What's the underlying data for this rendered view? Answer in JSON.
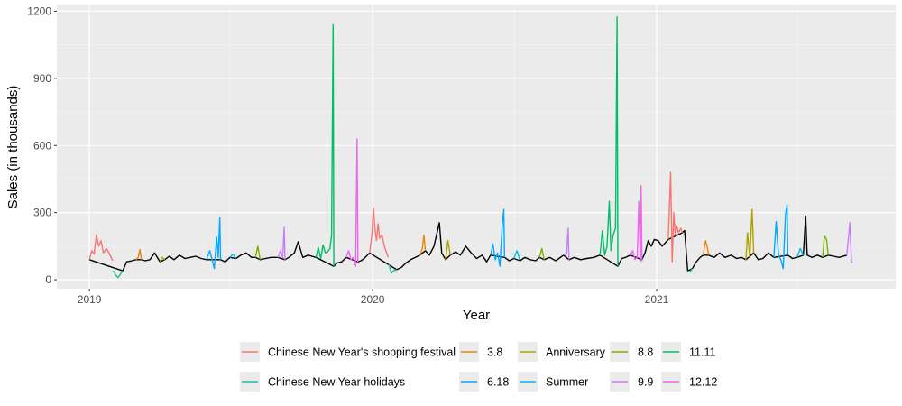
{
  "chart_data": {
    "type": "line",
    "title": "",
    "xlabel": "Year",
    "ylabel": "Sales (in thousands)",
    "xlim": [
      "2018-11-20",
      "2021-11-05"
    ],
    "ylim": [
      -40,
      1230
    ],
    "y_ticks": [
      0,
      300,
      600,
      900,
      1200
    ],
    "y_tick_labels": [
      "0",
      "300",
      "600",
      "900",
      "1200"
    ],
    "x_ticks": [
      "2019-01-01",
      "2020-01-01",
      "2021-01-01"
    ],
    "x_tick_labels": [
      "2019",
      "2020",
      "2021"
    ],
    "grid": true,
    "legend_position": "bottom",
    "base_color": "#000000",
    "series": [
      {
        "name": "Chinese New Year's shopping festival",
        "color": "#F8766D",
        "points": [
          [
            "2019-01-01",
            90
          ],
          [
            "2019-01-04",
            130
          ],
          [
            "2019-01-07",
            115
          ],
          [
            "2019-01-10",
            200
          ],
          [
            "2019-01-13",
            150
          ],
          [
            "2019-01-16",
            175
          ],
          [
            "2019-01-19",
            120
          ],
          [
            "2019-01-23",
            140
          ],
          [
            "2019-01-27",
            115
          ],
          [
            "2019-01-31",
            85
          ],
          [
            "2019-12-28",
            120
          ],
          [
            "2019-12-31",
            200
          ],
          [
            "2020-01-02",
            320
          ],
          [
            "2020-01-04",
            230
          ],
          [
            "2020-01-06",
            175
          ],
          [
            "2020-01-08",
            250
          ],
          [
            "2020-01-10",
            185
          ],
          [
            "2020-01-13",
            200
          ],
          [
            "2020-01-16",
            150
          ],
          [
            "2020-01-19",
            120
          ],
          [
            "2020-01-21",
            100
          ],
          [
            "2021-01-16",
            180
          ],
          [
            "2021-01-19",
            480
          ],
          [
            "2021-01-21",
            80
          ],
          [
            "2021-01-23",
            300
          ],
          [
            "2021-01-25",
            200
          ],
          [
            "2021-01-27",
            240
          ],
          [
            "2021-01-29",
            210
          ],
          [
            "2021-02-01",
            230
          ],
          [
            "2021-02-03",
            210
          ]
        ]
      },
      {
        "name": "Chinese New Year holidays",
        "color": "#1ABC9C",
        "points": [
          [
            "2019-02-01",
            40
          ],
          [
            "2019-02-04",
            20
          ],
          [
            "2019-02-07",
            10
          ],
          [
            "2019-02-10",
            25
          ],
          [
            "2019-02-13",
            40
          ],
          [
            "2020-01-22",
            70
          ],
          [
            "2020-01-25",
            30
          ],
          [
            "2020-01-28",
            40
          ],
          [
            "2020-02-01",
            45
          ],
          [
            "2021-02-10",
            40
          ],
          [
            "2021-02-13",
            35
          ],
          [
            "2021-02-16",
            50
          ]
        ]
      },
      {
        "name": "3.8",
        "color": "#E68613",
        "points": [
          [
            "2019-03-02",
            90
          ],
          [
            "2019-03-05",
            100
          ],
          [
            "2019-03-07",
            135
          ],
          [
            "2019-03-09",
            90
          ],
          [
            "2020-03-02",
            110
          ],
          [
            "2020-03-05",
            140
          ],
          [
            "2020-03-07",
            200
          ],
          [
            "2020-03-09",
            130
          ],
          [
            "2021-03-02",
            110
          ],
          [
            "2021-03-05",
            175
          ],
          [
            "2021-03-07",
            150
          ],
          [
            "2021-03-09",
            110
          ]
        ]
      },
      {
        "name": "Anniversary",
        "color": "#ABA300",
        "points": [
          [
            "2019-04-02",
            80
          ],
          [
            "2019-04-05",
            100
          ],
          [
            "2019-04-08",
            90
          ],
          [
            "2020-04-04",
            90
          ],
          [
            "2020-04-07",
            175
          ],
          [
            "2020-04-10",
            110
          ],
          [
            "2021-04-26",
            90
          ],
          [
            "2021-04-28",
            210
          ],
          [
            "2021-05-01",
            100
          ],
          [
            "2021-05-04",
            315
          ],
          [
            "2021-05-06",
            120
          ]
        ]
      },
      {
        "name": "8.8",
        "color": "#7CAE00",
        "points": [
          [
            "2019-08-03",
            100
          ],
          [
            "2019-08-06",
            150
          ],
          [
            "2019-08-09",
            90
          ],
          [
            "2020-08-03",
            100
          ],
          [
            "2020-08-06",
            140
          ],
          [
            "2020-08-09",
            90
          ],
          [
            "2021-08-03",
            100
          ],
          [
            "2021-08-05",
            195
          ],
          [
            "2021-08-08",
            180
          ],
          [
            "2021-08-10",
            110
          ]
        ]
      },
      {
        "name": "11.11",
        "color": "#00BE67",
        "points": [
          [
            "2019-10-20",
            100
          ],
          [
            "2019-10-23",
            145
          ],
          [
            "2019-10-26",
            95
          ],
          [
            "2019-10-29",
            155
          ],
          [
            "2019-11-01",
            120
          ],
          [
            "2019-11-04",
            125
          ],
          [
            "2019-11-07",
            140
          ],
          [
            "2019-11-09",
            200
          ],
          [
            "2019-11-11",
            1140
          ],
          [
            "2019-11-12",
            60
          ],
          [
            "2020-10-20",
            110
          ],
          [
            "2020-10-23",
            220
          ],
          [
            "2020-10-26",
            110
          ],
          [
            "2020-10-29",
            150
          ],
          [
            "2020-11-01",
            350
          ],
          [
            "2020-11-03",
            130
          ],
          [
            "2020-11-06",
            200
          ],
          [
            "2020-11-09",
            230
          ],
          [
            "2020-11-11",
            1175
          ],
          [
            "2020-11-12",
            60
          ]
        ]
      },
      {
        "name": "6.18",
        "color": "#00A9FF",
        "points": [
          [
            "2019-06-01",
            90
          ],
          [
            "2019-06-05",
            130
          ],
          [
            "2019-06-08",
            90
          ],
          [
            "2019-06-11",
            50
          ],
          [
            "2019-06-14",
            190
          ],
          [
            "2019-06-16",
            100
          ],
          [
            "2019-06-18",
            280
          ],
          [
            "2019-06-19",
            90
          ],
          [
            "2020-06-01",
            110
          ],
          [
            "2020-06-04",
            160
          ],
          [
            "2020-06-07",
            90
          ],
          [
            "2020-06-10",
            120
          ],
          [
            "2020-06-13",
            60
          ],
          [
            "2020-06-16",
            240
          ],
          [
            "2020-06-18",
            315
          ],
          [
            "2020-06-19",
            100
          ],
          [
            "2021-06-01",
            100
          ],
          [
            "2021-06-04",
            260
          ],
          [
            "2021-06-07",
            110
          ],
          [
            "2021-06-10",
            90
          ],
          [
            "2021-06-13",
            50
          ],
          [
            "2021-06-16",
            290
          ],
          [
            "2021-06-18",
            335
          ],
          [
            "2021-06-19",
            110
          ]
        ]
      },
      {
        "name": "Summer",
        "color": "#00B8E7",
        "points": [
          [
            "2019-07-01",
            100
          ],
          [
            "2019-07-05",
            115
          ],
          [
            "2019-07-09",
            95
          ],
          [
            "2020-07-01",
            95
          ],
          [
            "2020-07-05",
            130
          ],
          [
            "2020-07-09",
            85
          ],
          [
            "2021-07-01",
            100
          ],
          [
            "2021-07-05",
            140
          ],
          [
            "2021-07-09",
            110
          ]
        ]
      },
      {
        "name": "9.9",
        "color": "#C77CFF",
        "points": [
          [
            "2019-09-01",
            100
          ],
          [
            "2019-09-04",
            130
          ],
          [
            "2019-09-07",
            100
          ],
          [
            "2019-09-09",
            235
          ],
          [
            "2019-09-10",
            90
          ],
          [
            "2020-09-03",
            110
          ],
          [
            "2020-09-07",
            120
          ],
          [
            "2020-09-09",
            230
          ],
          [
            "2020-09-10",
            90
          ],
          [
            "2021-09-03",
            110
          ],
          [
            "2021-09-07",
            255
          ],
          [
            "2021-09-09",
            80
          ],
          [
            "2021-09-11",
            75
          ]
        ]
      },
      {
        "name": "12.12",
        "color": "#ED68ED",
        "points": [
          [
            "2019-11-28",
            100
          ],
          [
            "2019-12-01",
            130
          ],
          [
            "2019-12-04",
            90
          ],
          [
            "2019-12-07",
            100
          ],
          [
            "2019-12-10",
            60
          ],
          [
            "2019-12-12",
            630
          ],
          [
            "2019-12-13",
            80
          ],
          [
            "2020-11-28",
            110
          ],
          [
            "2020-12-01",
            130
          ],
          [
            "2020-12-04",
            90
          ],
          [
            "2020-12-07",
            100
          ],
          [
            "2020-12-09",
            350
          ],
          [
            "2020-12-11",
            80
          ],
          [
            "2020-12-12",
            420
          ],
          [
            "2020-12-13",
            90
          ]
        ]
      }
    ],
    "baseline": [
      [
        "2019-01-01",
        90
      ],
      [
        "2019-02-13",
        40
      ],
      [
        "2019-02-18",
        80
      ],
      [
        "2019-02-25",
        85
      ],
      [
        "2019-03-02",
        90
      ],
      [
        "2019-03-09",
        90
      ],
      [
        "2019-03-14",
        85
      ],
      [
        "2019-03-20",
        90
      ],
      [
        "2019-03-26",
        120
      ],
      [
        "2019-04-02",
        80
      ],
      [
        "2019-04-08",
        90
      ],
      [
        "2019-04-14",
        105
      ],
      [
        "2019-04-20",
        90
      ],
      [
        "2019-04-27",
        110
      ],
      [
        "2019-05-04",
        95
      ],
      [
        "2019-05-11",
        100
      ],
      [
        "2019-05-18",
        105
      ],
      [
        "2019-05-25",
        95
      ],
      [
        "2019-06-01",
        90
      ],
      [
        "2019-06-19",
        90
      ],
      [
        "2019-06-25",
        80
      ],
      [
        "2019-07-01",
        100
      ],
      [
        "2019-07-09",
        95
      ],
      [
        "2019-07-15",
        110
      ],
      [
        "2019-07-22",
        120
      ],
      [
        "2019-07-29",
        100
      ],
      [
        "2019-08-03",
        100
      ],
      [
        "2019-08-09",
        90
      ],
      [
        "2019-08-16",
        95
      ],
      [
        "2019-08-23",
        100
      ],
      [
        "2019-09-01",
        100
      ],
      [
        "2019-09-10",
        90
      ],
      [
        "2019-09-15",
        100
      ],
      [
        "2019-09-22",
        120
      ],
      [
        "2019-09-27",
        170
      ],
      [
        "2019-10-03",
        100
      ],
      [
        "2019-10-10",
        110
      ],
      [
        "2019-10-20",
        100
      ],
      [
        "2019-11-12",
        60
      ],
      [
        "2019-11-16",
        75
      ],
      [
        "2019-11-22",
        80
      ],
      [
        "2019-11-28",
        100
      ],
      [
        "2019-12-13",
        80
      ],
      [
        "2019-12-17",
        85
      ],
      [
        "2019-12-21",
        95
      ],
      [
        "2019-12-28",
        120
      ],
      [
        "2020-02-01",
        45
      ],
      [
        "2020-02-07",
        55
      ],
      [
        "2020-02-13",
        75
      ],
      [
        "2020-02-19",
        90
      ],
      [
        "2020-02-25",
        100
      ],
      [
        "2020-03-02",
        110
      ],
      [
        "2020-03-09",
        130
      ],
      [
        "2020-03-14",
        110
      ],
      [
        "2020-03-20",
        150
      ],
      [
        "2020-03-27",
        255
      ],
      [
        "2020-03-30",
        120
      ],
      [
        "2020-04-04",
        90
      ],
      [
        "2020-04-10",
        110
      ],
      [
        "2020-04-17",
        125
      ],
      [
        "2020-04-23",
        110
      ],
      [
        "2020-04-30",
        150
      ],
      [
        "2020-05-07",
        120
      ],
      [
        "2020-05-14",
        95
      ],
      [
        "2020-05-21",
        110
      ],
      [
        "2020-05-27",
        80
      ],
      [
        "2020-06-01",
        110
      ],
      [
        "2020-06-19",
        100
      ],
      [
        "2020-06-25",
        85
      ],
      [
        "2020-07-01",
        95
      ],
      [
        "2020-07-09",
        85
      ],
      [
        "2020-07-15",
        100
      ],
      [
        "2020-07-22",
        90
      ],
      [
        "2020-07-29",
        85
      ],
      [
        "2020-08-03",
        100
      ],
      [
        "2020-08-09",
        90
      ],
      [
        "2020-08-16",
        100
      ],
      [
        "2020-08-24",
        85
      ],
      [
        "2020-09-03",
        110
      ],
      [
        "2020-09-10",
        90
      ],
      [
        "2020-09-17",
        100
      ],
      [
        "2020-09-25",
        90
      ],
      [
        "2020-10-03",
        95
      ],
      [
        "2020-10-12",
        100
      ],
      [
        "2020-10-20",
        110
      ],
      [
        "2020-11-12",
        60
      ],
      [
        "2020-11-17",
        95
      ],
      [
        "2020-11-22",
        100
      ],
      [
        "2020-11-28",
        110
      ],
      [
        "2020-12-13",
        90
      ],
      [
        "2020-12-17",
        120
      ],
      [
        "2020-12-21",
        175
      ],
      [
        "2020-12-25",
        150
      ],
      [
        "2020-12-29",
        180
      ],
      [
        "2021-01-03",
        175
      ],
      [
        "2021-01-08",
        150
      ],
      [
        "2021-01-12",
        165
      ],
      [
        "2021-01-16",
        180
      ],
      [
        "2021-02-03",
        210
      ],
      [
        "2021-02-06",
        220
      ],
      [
        "2021-02-10",
        40
      ],
      [
        "2021-02-16",
        50
      ],
      [
        "2021-02-21",
        80
      ],
      [
        "2021-02-26",
        100
      ],
      [
        "2021-03-02",
        110
      ],
      [
        "2021-03-09",
        110
      ],
      [
        "2021-03-16",
        100
      ],
      [
        "2021-03-23",
        120
      ],
      [
        "2021-03-30",
        100
      ],
      [
        "2021-04-07",
        110
      ],
      [
        "2021-04-14",
        95
      ],
      [
        "2021-04-20",
        100
      ],
      [
        "2021-04-26",
        90
      ],
      [
        "2021-05-06",
        120
      ],
      [
        "2021-05-12",
        90
      ],
      [
        "2021-05-18",
        95
      ],
      [
        "2021-05-25",
        120
      ],
      [
        "2021-06-01",
        100
      ],
      [
        "2021-06-19",
        110
      ],
      [
        "2021-06-25",
        95
      ],
      [
        "2021-07-01",
        100
      ],
      [
        "2021-07-09",
        110
      ],
      [
        "2021-07-12",
        285
      ],
      [
        "2021-07-14",
        110
      ],
      [
        "2021-07-20",
        100
      ],
      [
        "2021-07-27",
        110
      ],
      [
        "2021-08-03",
        100
      ],
      [
        "2021-08-10",
        110
      ],
      [
        "2021-08-17",
        105
      ],
      [
        "2021-08-24",
        100
      ],
      [
        "2021-09-03",
        110
      ]
    ],
    "legend_rows": [
      [
        {
          "name": "Chinese New Year's shopping festival",
          "color": "#F8766D"
        },
        {
          "name": "3.8",
          "color": "#E68613"
        },
        {
          "name": "Anniversary",
          "color": "#ABA300"
        },
        {
          "name": "8.8",
          "color": "#7CAE00"
        },
        {
          "name": "11.11",
          "color": "#00BE67"
        }
      ],
      [
        {
          "name": "Chinese New Year holidays",
          "color": "#1ABC9C"
        },
        {
          "name": "6.18",
          "color": "#00A9FF"
        },
        {
          "name": "Summer",
          "color": "#00B8E7"
        },
        {
          "name": "9.9",
          "color": "#C77CFF"
        },
        {
          "name": "12.12",
          "color": "#ED68ED"
        }
      ]
    ]
  }
}
